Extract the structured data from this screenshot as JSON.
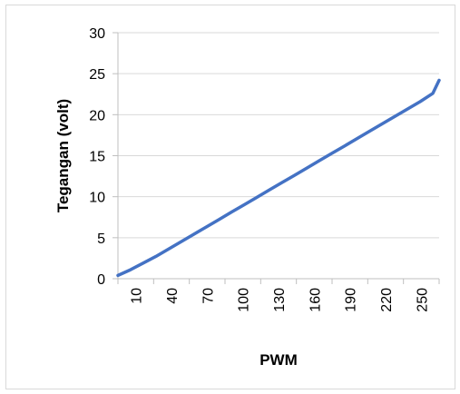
{
  "chart_data": {
    "type": "line",
    "title": "",
    "xlabel": "PWM",
    "ylabel": "Tegangan (volt)",
    "ylim": [
      0,
      30
    ],
    "yticks": [
      "0",
      "5",
      "10",
      "15",
      "20",
      "25",
      "30"
    ],
    "xticks": [
      "10",
      "40",
      "70",
      "100",
      "130",
      "160",
      "190",
      "220",
      "250"
    ],
    "grid": "horizontal",
    "legend": "none",
    "series": [
      {
        "color": "#4472c4",
        "x": [
          0,
          10,
          20,
          30,
          40,
          50,
          60,
          70,
          80,
          90,
          100,
          110,
          120,
          130,
          140,
          150,
          160,
          170,
          180,
          190,
          200,
          210,
          220,
          230,
          240,
          250,
          255
        ],
        "y": [
          0.4,
          1.1,
          1.9,
          2.7,
          3.6,
          4.5,
          5.4,
          6.3,
          7.2,
          8.1,
          9.0,
          9.9,
          10.8,
          11.7,
          12.6,
          13.5,
          14.4,
          15.3,
          16.2,
          17.1,
          18.0,
          18.9,
          19.8,
          20.7,
          21.6,
          22.6,
          24.2
        ]
      }
    ]
  }
}
